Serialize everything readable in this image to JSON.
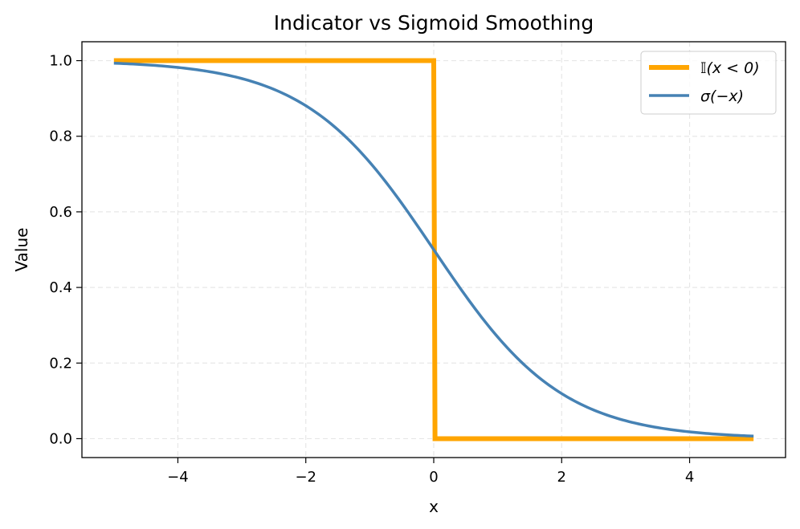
{
  "chart_data": {
    "type": "line",
    "title": "Indicator vs Sigmoid Smoothing",
    "xlabel": "x",
    "ylabel": "Value",
    "xlim": [
      -5.5,
      5.5
    ],
    "ylim": [
      -0.05,
      1.05
    ],
    "x_ticks": [
      -4,
      -2,
      0,
      2,
      4
    ],
    "x_tick_labels": [
      "−4",
      "−2",
      "0",
      "2",
      "4"
    ],
    "y_ticks": [
      0.0,
      0.2,
      0.4,
      0.6,
      0.8,
      1.0
    ],
    "y_tick_labels": [
      "0.0",
      "0.2",
      "0.4",
      "0.6",
      "0.8",
      "1.0"
    ],
    "grid": true,
    "legend_position": "top-right",
    "series": [
      {
        "name": "𝕀(x < 0)",
        "color": "#FFA500",
        "x": [
          -5,
          0,
          0.02,
          5
        ],
        "y": [
          1,
          1,
          0,
          0
        ]
      },
      {
        "name": "σ(−x)",
        "color": "#4682B4",
        "x": [
          -5,
          -4.5,
          -4,
          -3.5,
          -3,
          -2.5,
          -2,
          -1.5,
          -1,
          -0.5,
          0,
          0.5,
          1,
          1.5,
          2,
          2.5,
          3,
          3.5,
          4,
          4.5,
          5
        ],
        "y": [
          0.9933,
          0.989,
          0.982,
          0.9707,
          0.9526,
          0.9241,
          0.8808,
          0.8176,
          0.7311,
          0.6225,
          0.5,
          0.3775,
          0.2689,
          0.1824,
          0.1192,
          0.0759,
          0.0474,
          0.0293,
          0.018,
          0.011,
          0.0067
        ]
      }
    ]
  }
}
